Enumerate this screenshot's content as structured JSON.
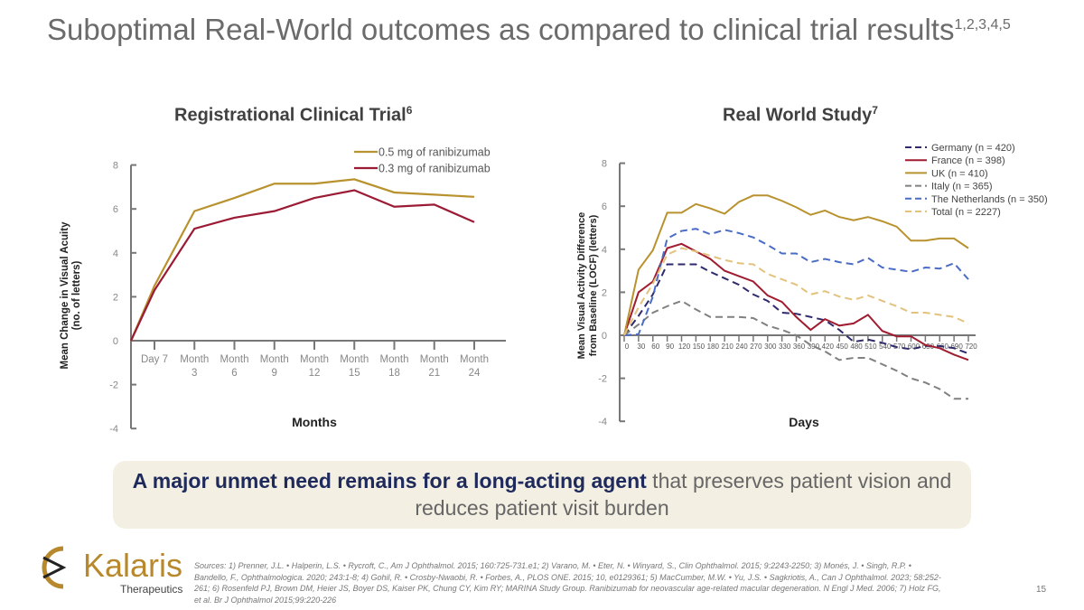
{
  "slide": {
    "title": "Suboptimal Real-World outcomes as compared to clinical trial results",
    "title_sup": "1,2,3,4,5",
    "callout_bold": "A major unmet need remains for a long-acting agent",
    "callout_rest": " that preserves patient vision and reduces patient visit burden",
    "logo_name": "Kalaris",
    "logo_sub": "Therapeutics",
    "sources": "Sources: 1) Prenner, J.L. • Halperin, L.S. • Rycroft, C., Am J Ophthalmol. 2015; 160:725-731.e1; 2) Varano, M. • Eter, N. • Winyard, S., Clin Ophthalmol. 2015; 9:2243-2250; 3) Monés, J. • Singh, R.P. • Bandello, F., Ophthalmologica. 2020; 243:1-8; 4) Gohil, R. • Crosby-Nwaobi, R. • Forbes, A., PLOS ONE. 2015; 10, e0129361; 5) MacCumber, M.W. • Yu, J.S. • Sagkriotis, A., Can J Ophthalmol. 2023; 58:252-261; 6) Rosenfeld PJ, Brown DM, Heier JS, Boyer DS, Kaiser PK, Chung CY, Kim RY; MARINA Study Group. Ranibizumab for neovascular age-related macular degeneration. N Engl J Med. 2006; 7) Holz FG, et al. Br J Ophthalmol 2015;99:220-226",
    "page_number": "15"
  },
  "chart_data": [
    {
      "type": "line",
      "title": "Registrational Clinical Trial",
      "title_sup": "6",
      "xlabel": "Months",
      "ylabel": "Mean Change in Visual Acuity (no. of letters)",
      "categories": [
        "",
        "Day 7",
        "Month 3",
        "Month 6",
        "Month 9",
        "Month 12",
        "Month 15",
        "Month 18",
        "Month 21",
        "Month 24"
      ],
      "ylim": [
        -4,
        8
      ],
      "yticks": [
        -4,
        -2,
        0,
        2,
        4,
        6,
        8
      ],
      "legend": "top-right",
      "grid": false,
      "series": [
        {
          "name": "0.5 mg of ranibizumab",
          "color": "#b8922e",
          "dash": false,
          "values": [
            0,
            2.5,
            5.9,
            6.5,
            7.15,
            7.15,
            7.35,
            6.75,
            6.65,
            6.55
          ]
        },
        {
          "name": "0.3 mg of ranibizumab",
          "color": "#9b1b35",
          "dash": false,
          "values": [
            0,
            2.3,
            5.1,
            5.6,
            5.9,
            6.5,
            6.85,
            6.1,
            6.2,
            5.4
          ]
        }
      ]
    },
    {
      "type": "line",
      "title": "Real World Study",
      "title_sup": "7",
      "xlabel": "Days",
      "ylabel": "Mean Visual Activity Difference from Baseline (LOCF) (letters)",
      "x": [
        0,
        30,
        60,
        90,
        120,
        150,
        180,
        210,
        240,
        270,
        300,
        330,
        360,
        390,
        420,
        450,
        480,
        510,
        540,
        570,
        600,
        630,
        660,
        690,
        720
      ],
      "ylim": [
        -4,
        8
      ],
      "yticks": [
        -4,
        -2,
        0,
        2,
        4,
        6,
        8
      ],
      "legend": "top-right",
      "grid": false,
      "series": [
        {
          "name": "Germany (n = 420)",
          "color": "#2e2a6b",
          "dash": true,
          "values": [
            0,
            0.9,
            1.9,
            3.3,
            3.3,
            3.3,
            2.95,
            2.65,
            2.35,
            1.9,
            1.6,
            1.05,
            1.0,
            0.85,
            0.7,
            0.25,
            -0.3,
            -0.2,
            -0.35,
            -0.55,
            -0.65,
            -0.5,
            -0.5,
            -0.6,
            -0.85
          ]
        },
        {
          "name": "France (n = 398)",
          "color": "#a01c30",
          "dash": false,
          "values": [
            0,
            2.0,
            2.5,
            4.05,
            4.25,
            3.9,
            3.55,
            3.0,
            2.75,
            2.5,
            1.85,
            1.55,
            0.85,
            0.25,
            0.75,
            0.45,
            0.55,
            0.95,
            0.2,
            -0.05,
            -0.05,
            -0.45,
            -0.6,
            -0.9,
            -1.15
          ]
        },
        {
          "name": "UK (n = 410)",
          "color": "#b8922e",
          "dash": false,
          "values": [
            0,
            3.05,
            3.95,
            5.7,
            5.7,
            6.1,
            5.9,
            5.65,
            6.2,
            6.5,
            6.5,
            6.25,
            5.95,
            5.6,
            5.8,
            5.5,
            5.35,
            5.5,
            5.3,
            5.05,
            4.4,
            4.4,
            4.5,
            4.5,
            4.05
          ]
        },
        {
          "name": "Italy (n = 365)",
          "color": "#808080",
          "dash": true,
          "values": [
            0,
            0.5,
            1.05,
            1.35,
            1.6,
            1.2,
            0.85,
            0.85,
            0.85,
            0.8,
            0.45,
            0.25,
            0.0,
            -0.45,
            -0.75,
            -1.15,
            -1.05,
            -1.05,
            -1.35,
            -1.65,
            -2.0,
            -2.2,
            -2.5,
            -2.95,
            -2.95
          ]
        },
        {
          "name": "The Netherlands (n = 350)",
          "color": "#4a6cc4",
          "dash": true,
          "values": [
            0,
            0.05,
            1.8,
            4.5,
            4.85,
            4.95,
            4.7,
            4.9,
            4.75,
            4.55,
            4.2,
            3.8,
            3.8,
            3.4,
            3.55,
            3.4,
            3.3,
            3.6,
            3.15,
            3.05,
            2.95,
            3.15,
            3.1,
            3.35,
            2.6
          ]
        },
        {
          "name": "Total (n = 2227)",
          "color": "#e3c27e",
          "dash": true,
          "values": [
            0,
            1.3,
            2.4,
            3.75,
            4.05,
            3.9,
            3.7,
            3.5,
            3.35,
            3.3,
            2.85,
            2.6,
            2.35,
            1.9,
            2.05,
            1.8,
            1.65,
            1.85,
            1.6,
            1.35,
            1.05,
            1.05,
            0.95,
            0.85,
            0.55
          ]
        }
      ]
    }
  ]
}
